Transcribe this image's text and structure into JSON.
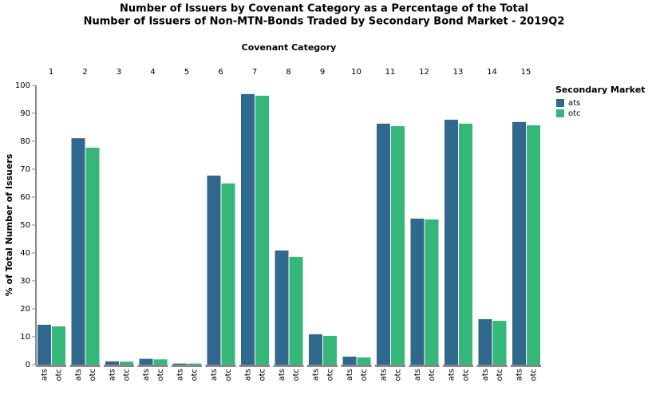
{
  "chart_data": {
    "type": "bar",
    "title": [
      "Number of Issuers by Covenant Category as a Percentage of the Total",
      "Number of Issuers of Non-MTN-Bonds Traded by Secondary Bond Market - 2019Q2"
    ],
    "facet_title": "Covenant Category",
    "y_label": "% of Total Number of Issuers",
    "legend_title": "Secondary Market",
    "categories": [
      "1",
      "2",
      "3",
      "4",
      "5",
      "6",
      "7",
      "8",
      "9",
      "10",
      "11",
      "12",
      "13",
      "14",
      "15"
    ],
    "series": [
      {
        "name": "ats",
        "color": "#31688e",
        "values": [
          14.3,
          81.1,
          1.2,
          2.1,
          0.4,
          67.7,
          96.9,
          40.9,
          10.9,
          2.9,
          86.3,
          52.3,
          87.7,
          16.3,
          86.9
        ]
      },
      {
        "name": "otc",
        "color": "#35b779",
        "values": [
          13.7,
          77.7,
          1.1,
          1.9,
          0.4,
          64.9,
          96.3,
          38.6,
          10.3,
          2.6,
          85.4,
          52.0,
          86.3,
          15.7,
          85.7
        ]
      }
    ],
    "ylim": [
      0,
      100
    ],
    "yticks": [
      0,
      10,
      20,
      30,
      40,
      50,
      60,
      70,
      80,
      90,
      100
    ],
    "grid": false,
    "legend": "right"
  }
}
